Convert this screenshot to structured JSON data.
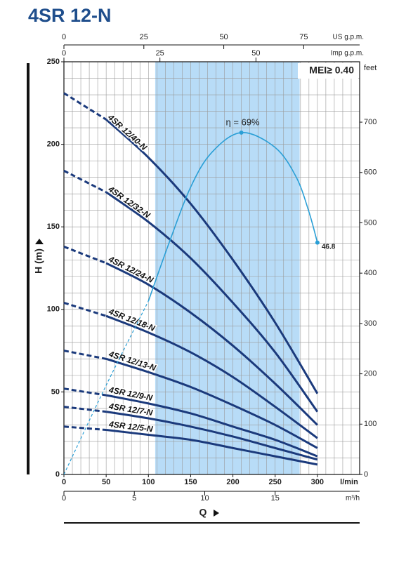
{
  "chart_data": {
    "type": "pump-curves",
    "title": "4SR 12-N",
    "badge": "MEI≥ 0.40",
    "xlabel": "Q",
    "x_unit": "l/min",
    "ylabel": "H (m)",
    "y2label": "feet",
    "xlim": [
      0,
      350
    ],
    "xticks": [
      0,
      50,
      100,
      150,
      200,
      250,
      300
    ],
    "ylim": [
      0,
      250
    ],
    "yticks": [
      0,
      50,
      100,
      150,
      200,
      250
    ],
    "y2lim": [
      0,
      820
    ],
    "y2ticks": [
      0,
      100,
      200,
      300,
      400,
      500,
      600,
      700
    ],
    "grid": true,
    "xgrid_step": 10,
    "ygrid_step": 10,
    "shaded_range": [
      108,
      279
    ],
    "shade_color": "#b8dcf7",
    "top_axes": [
      {
        "label": "US g.p.m.",
        "lim": [
          0,
          92.5
        ],
        "ticks": [
          0,
          25,
          50,
          75
        ]
      },
      {
        "label": "Imp g.p.m.",
        "lim": [
          0,
          77
        ],
        "ticks": [
          0,
          25,
          50
        ]
      }
    ],
    "bottom_axis": {
      "label": "m³/h",
      "lim": [
        0,
        21
      ],
      "ticks": [
        0,
        5,
        10,
        15
      ]
    },
    "x": [
      0,
      50,
      100,
      150,
      200,
      250,
      300
    ],
    "series": [
      {
        "name": "4SR 12/40-N",
        "color": "#1b3a7c",
        "values": [
          231,
          215,
          192,
          164,
          130,
          92,
          49
        ]
      },
      {
        "name": "4SR 12/32-N",
        "color": "#1b3a7c",
        "values": [
          184,
          171,
          153,
          131,
          104,
          74,
          38
        ]
      },
      {
        "name": "4SR 12/24-N",
        "color": "#1b3a7c",
        "values": [
          138,
          128,
          115,
          98,
          78,
          55,
          30
        ]
      },
      {
        "name": "4SR 12/18-N",
        "color": "#1b3a7c",
        "values": [
          104,
          96,
          86,
          74,
          59,
          41,
          22
        ]
      },
      {
        "name": "4SR 12/13-N",
        "color": "#1b3a7c",
        "values": [
          75,
          70,
          62,
          53,
          42,
          30,
          16
        ]
      },
      {
        "name": "4SR 12/9-N",
        "color": "#1b3a7c",
        "values": [
          52,
          48,
          43,
          37,
          29,
          21,
          11
        ]
      },
      {
        "name": "4SR 12/7-N",
        "color": "#1b3a7c",
        "values": [
          41,
          38,
          34,
          29,
          23,
          16,
          9
        ]
      },
      {
        "name": "4SR 12/5-N",
        "color": "#1b3a7c",
        "values": [
          29,
          27,
          24,
          21,
          16,
          11,
          6
        ]
      }
    ],
    "efficiency": {
      "color": "#2a9fd6",
      "lim": [
        0,
        83.3
      ],
      "x": [
        0,
        50,
        100,
        125,
        150,
        175,
        210,
        250,
        275,
        290,
        300
      ],
      "values": [
        0,
        18,
        35,
        47,
        58,
        65,
        69,
        66,
        60,
        53,
        46.8
      ],
      "annotations": [
        {
          "text": "η = 69%",
          "x": 210,
          "y": 69
        },
        {
          "text": "46.8",
          "x": 300,
          "y": 46.8
        }
      ]
    }
  }
}
